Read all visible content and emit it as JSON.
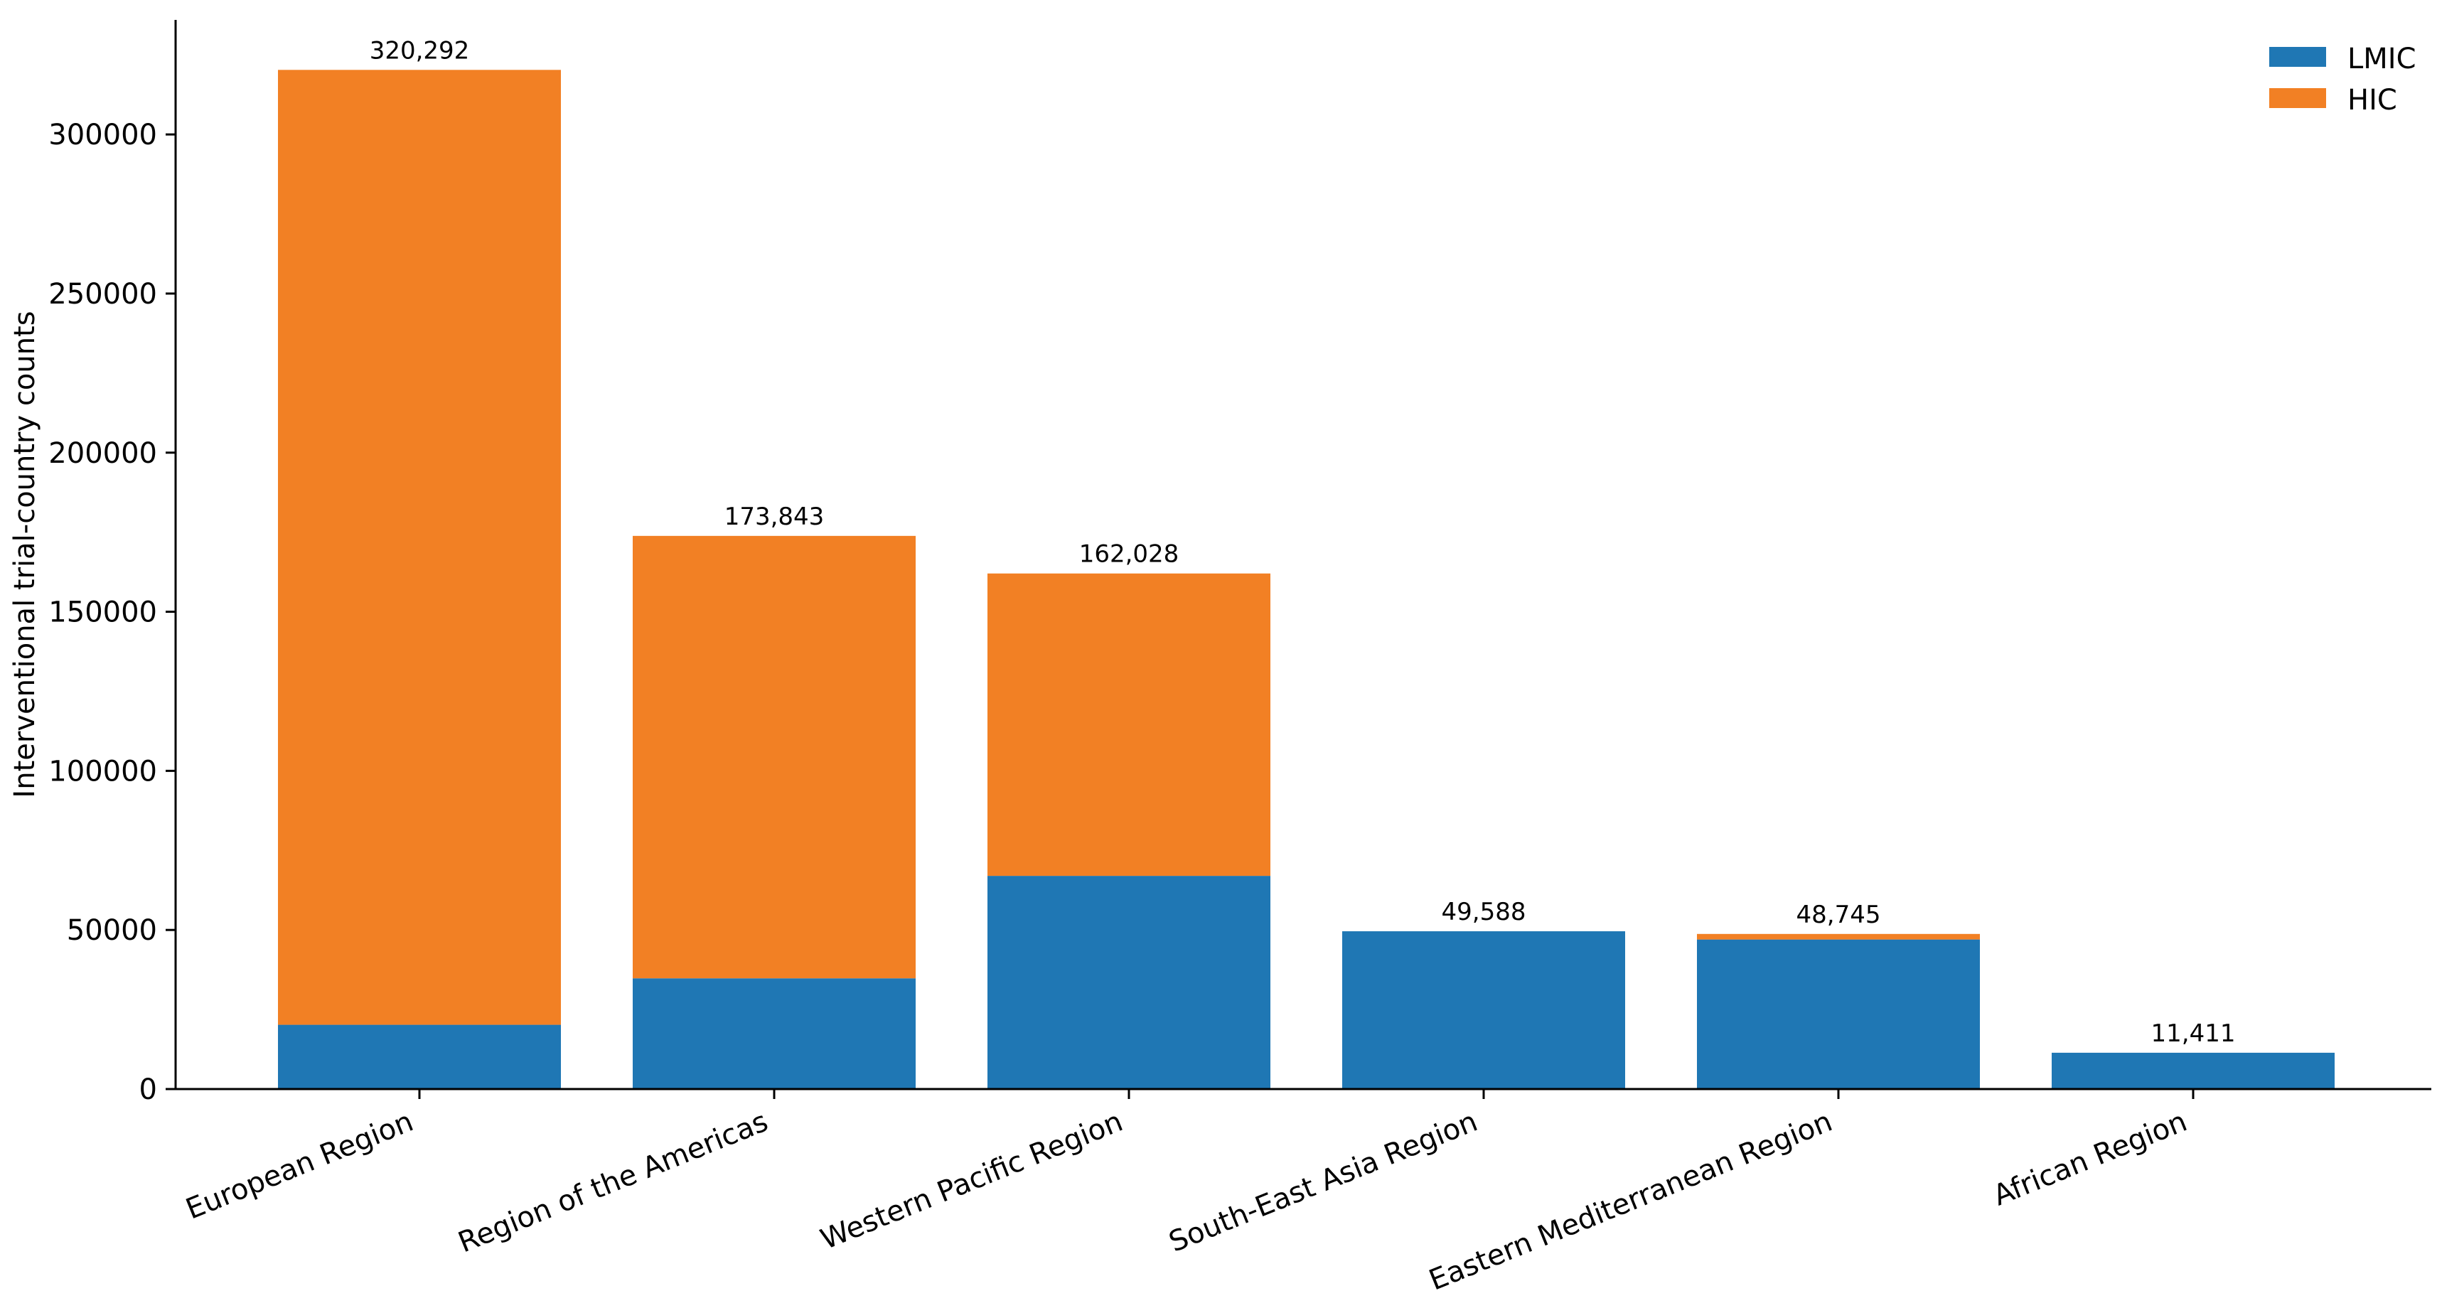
{
  "chart_data": {
    "type": "bar",
    "stacked": true,
    "title": "",
    "xlabel": "",
    "ylabel": "Interventional trial-country counts",
    "categories": [
      "European Region",
      "Region of the Americas",
      "Western Pacific Region",
      "South-East Asia Region",
      "Eastern Mediterranean Region",
      "African Region"
    ],
    "series": [
      {
        "name": "LMIC",
        "color": "#1f77b4",
        "values": [
          20200,
          34800,
          67000,
          49588,
          47000,
          11411
        ]
      },
      {
        "name": "HIC",
        "color": "#f28024",
        "values": [
          300092,
          139043,
          95028,
          0,
          1745,
          0
        ]
      }
    ],
    "totals": [
      "320,292",
      "173,843",
      "162,028",
      "49,588",
      "48,745",
      "11,411"
    ],
    "yticks": [
      "0",
      "50000",
      "100000",
      "150000",
      "200000",
      "250000",
      "300000"
    ],
    "ylim": [
      0,
      336000
    ],
    "grid": false,
    "legend_position": "top-right"
  }
}
